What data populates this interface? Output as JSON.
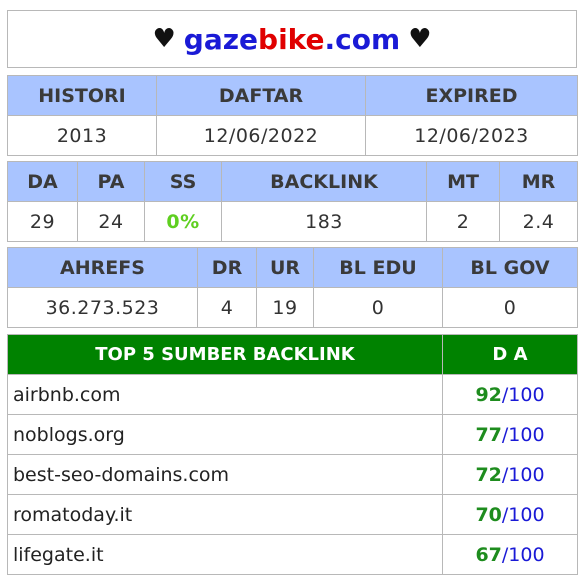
{
  "header": {
    "heart_left": "♥",
    "heart_right": "♥",
    "brand_part1": "gaze",
    "brand_part2": "bike",
    "brand_part3": ".com"
  },
  "registration": {
    "headers": [
      "HISTORI",
      "DAFTAR",
      "EXPIRED"
    ],
    "values": [
      "2013",
      "12/06/2022",
      "12/06/2023"
    ]
  },
  "metrics": {
    "headers": [
      "DA",
      "PA",
      "SS",
      "BACKLINK",
      "MT",
      "MR"
    ],
    "values": [
      "29",
      "24",
      "0%",
      "183",
      "2",
      "2.4"
    ]
  },
  "ahrefs": {
    "headers": [
      "AHREFS",
      "DR",
      "UR",
      "BL EDU",
      "BL GOV"
    ],
    "values": [
      "36.273.523",
      "4",
      "19",
      "0",
      "0"
    ]
  },
  "backlinks": {
    "title": "TOP 5 SUMBER BACKLINK",
    "score_header": "D A",
    "rows": [
      {
        "domain": "airbnb.com",
        "da": "92",
        "max": "/100"
      },
      {
        "domain": "noblogs.org",
        "da": "77",
        "max": "/100"
      },
      {
        "domain": "best-seo-domains.com",
        "da": "72",
        "max": "/100"
      },
      {
        "domain": "romatoday.it",
        "da": "70",
        "max": "/100"
      },
      {
        "domain": "lifegate.it",
        "da": "67",
        "max": "/100"
      }
    ]
  },
  "colors": {
    "header_bg": "#a9c4ff",
    "backlink_header_bg": "#008200",
    "brand_blue": "#1a1ad6",
    "brand_red": "#e00000",
    "ss_green": "#5fcf20"
  }
}
